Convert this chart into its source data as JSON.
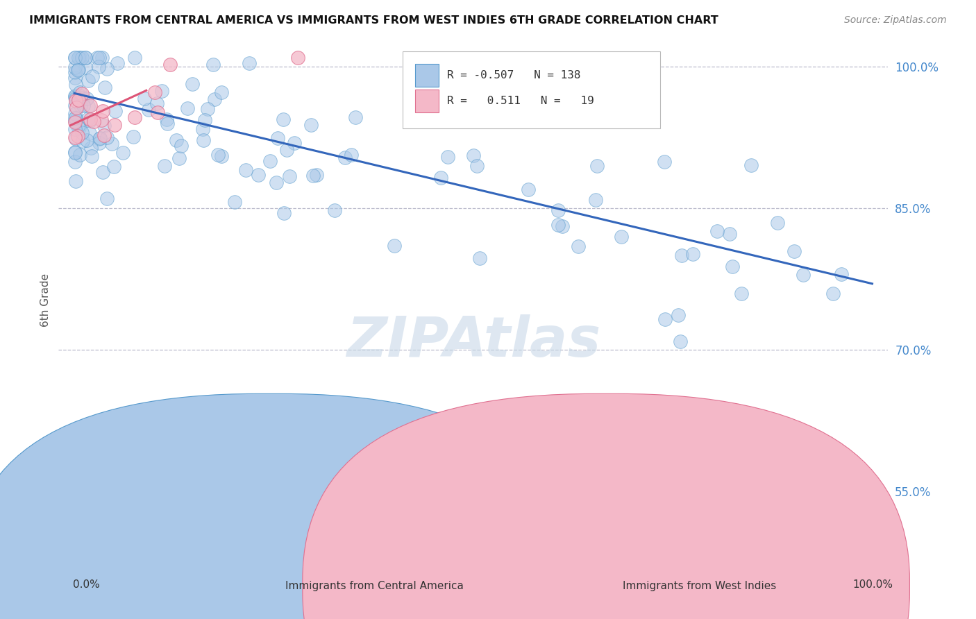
{
  "title": "IMMIGRANTS FROM CENTRAL AMERICA VS IMMIGRANTS FROM WEST INDIES 6TH GRADE CORRELATION CHART",
  "source": "Source: ZipAtlas.com",
  "ylabel": "6th Grade",
  "legend_blue_R": "-0.507",
  "legend_blue_N": "138",
  "legend_pink_R": "0.511",
  "legend_pink_N": "19",
  "legend_label_blue": "Immigrants from Central America",
  "legend_label_pink": "Immigrants from West Indies",
  "blue_color": "#aac8e8",
  "blue_edge_color": "#5599cc",
  "blue_line_color": "#3366bb",
  "pink_color": "#f4b8c8",
  "pink_edge_color": "#e07090",
  "pink_line_color": "#dd5577",
  "background_color": "#ffffff",
  "grid_color": "#bbbbcc",
  "watermark": "ZIPAtlas",
  "watermark_color": "#c8d8e8",
  "ylim_min": 0.48,
  "ylim_max": 1.025,
  "xlim_min": -0.02,
  "xlim_max": 1.02,
  "ytick_vals": [
    0.55,
    0.7,
    0.85,
    1.0
  ],
  "ytick_labels": [
    "55.0%",
    "70.0%",
    "85.0%",
    "100.0%"
  ],
  "blue_line_x0": 0.0,
  "blue_line_x1": 1.0,
  "blue_line_y0": 0.972,
  "blue_line_y1": 0.77,
  "pink_line_x0": -0.005,
  "pink_line_x1": 0.09,
  "pink_line_y0": 0.938,
  "pink_line_y1": 0.975
}
